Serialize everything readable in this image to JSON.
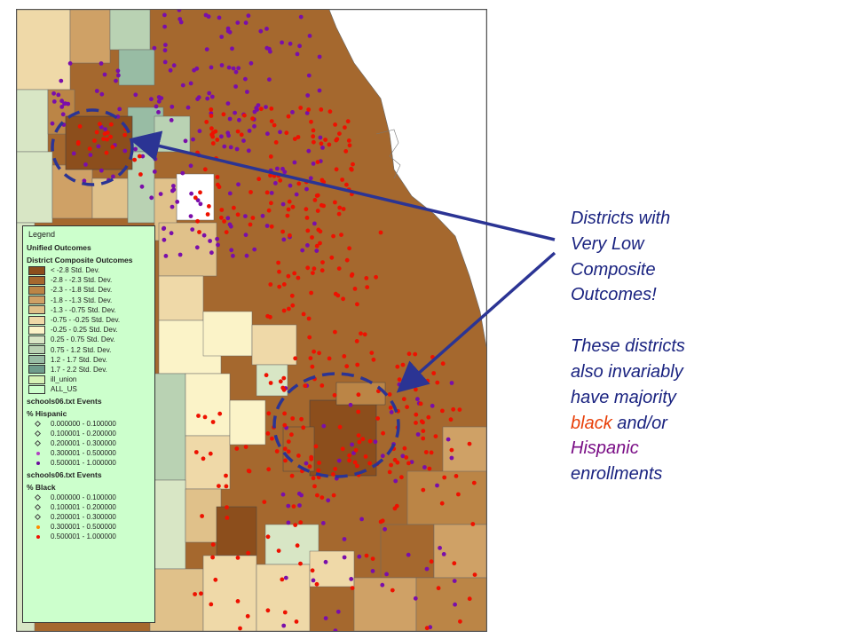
{
  "legend": {
    "title": "Legend",
    "section1": "Unified Outcomes",
    "section2": "District Composite Outcomes",
    "composite_classes": [
      {
        "label": "< -2.8 Std. Dev.",
        "color": "#8c4e1c"
      },
      {
        "label": "-2.8 - -2.3 Std. Dev.",
        "color": "#a5682e"
      },
      {
        "label": "-2.3 - -1.8 Std. Dev.",
        "color": "#bb8546"
      },
      {
        "label": "-1.8 - -1.3 Std. Dev.",
        "color": "#cfa166"
      },
      {
        "label": "-1.3 - -0.75 Std. Dev.",
        "color": "#e0c18a"
      },
      {
        "label": "-0.75 - -0.25 Std. Dev.",
        "color": "#efd9a8"
      },
      {
        "label": "-0.25 - 0.25 Std. Dev.",
        "color": "#fbf3c8"
      },
      {
        "label": "0.25 - 0.75 Std. Dev.",
        "color": "#d8e6c5"
      },
      {
        "label": "0.75 - 1.2 Std. Dev.",
        "color": "#b9d2b3"
      },
      {
        "label": "1.2 - 1.7 Std. Dev.",
        "color": "#98bca4"
      },
      {
        "label": "1.7 - 2.2 Std. Dev.",
        "color": "#6f9c8c"
      },
      {
        "label": "ill_union",
        "color": "#d6f2b6"
      },
      {
        "label": "ALL_US",
        "color": "#ccffcc"
      }
    ],
    "hispanic_layer": "schools06.txt Events",
    "hispanic_field": "% Hispanic",
    "hispanic_classes": [
      {
        "label": "0.000000 - 0.100000",
        "color": "#ffffff",
        "style": "hollow"
      },
      {
        "label": "0.100001 - 0.200000",
        "color": "#ffffff",
        "style": "hollow"
      },
      {
        "label": "0.200001 - 0.300000",
        "color": "#ffffff",
        "style": "hollow"
      },
      {
        "label": "0.300001 - 0.500000",
        "color": "#b040c0",
        "style": "dot"
      },
      {
        "label": "0.500001 - 1.000000",
        "color": "#6a0c9a",
        "style": "dot"
      }
    ],
    "black_layer": "schools06.txt Events",
    "black_field": "% Black",
    "black_classes": [
      {
        "label": "0.000000 - 0.100000",
        "color": "#ffffff",
        "style": "hollow"
      },
      {
        "label": "0.100001 - 0.200000",
        "color": "#ffffff",
        "style": "hollow"
      },
      {
        "label": "0.200001 - 0.300000",
        "color": "#ffffff",
        "style": "hollow"
      },
      {
        "label": "0.300001 - 0.500000",
        "color": "#ff8a00",
        "style": "dot"
      },
      {
        "label": "0.500001 - 1.000000",
        "color": "#ee1100",
        "style": "dot"
      }
    ]
  },
  "annotation": {
    "line1": "Districts with",
    "line2": "Very Low",
    "line3": "Composite",
    "line4": "Outcomes!",
    "line5": "These districts",
    "line6": "also invariably",
    "line7": "have majority",
    "line8_black": "black",
    "line8_rest": " and/or",
    "line9_hispanic": "Hispanic",
    "line10": "enrollments",
    "text_color": "#1a2380",
    "arrow_color": "#2b3494"
  },
  "colors": {
    "lake": "#ffffff",
    "base_district": "#a5682e",
    "hispanic_dot": "#7a0eaa",
    "black_dot": "#ee1100",
    "circle_dash": "#2b3494"
  }
}
